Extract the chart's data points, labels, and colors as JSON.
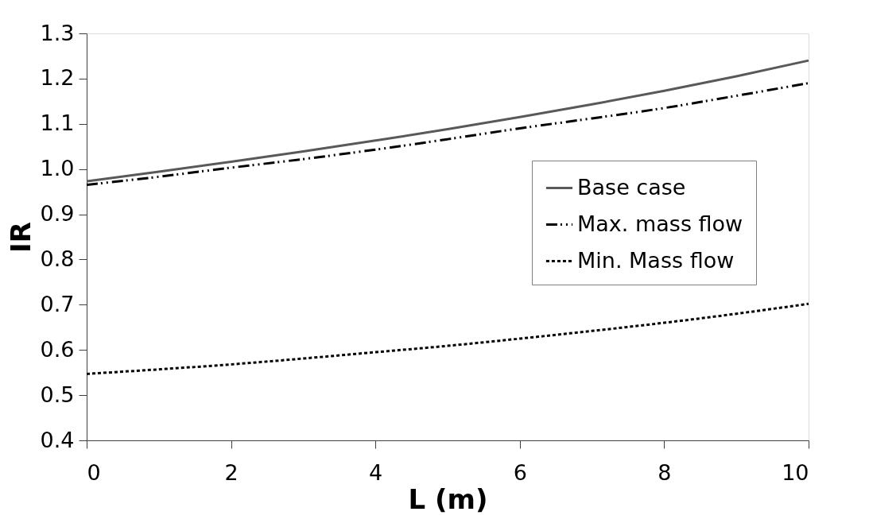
{
  "chart_data": {
    "type": "line",
    "xlabel": "L (m)",
    "ylabel": "IR",
    "x": [
      0,
      1,
      2,
      3,
      4,
      5,
      6,
      7,
      8,
      9,
      10
    ],
    "series": [
      {
        "name": "Base case",
        "color": "#595959",
        "line_style": "solid",
        "values": [
          0.973,
          0.994,
          1.016,
          1.039,
          1.063,
          1.088,
          1.115,
          1.143,
          1.173,
          1.205,
          1.24
        ]
      },
      {
        "name": "Max. mass flow",
        "color": "#000000",
        "line_style": "dashed",
        "values": [
          0.965,
          0.983,
          1.003,
          1.022,
          1.043,
          1.066,
          1.09,
          1.112,
          1.135,
          1.162,
          1.19
        ]
      },
      {
        "name": "Min. Mass flow",
        "color": "#000000",
        "line_style": "dotted",
        "values": [
          0.547,
          0.557,
          0.568,
          0.581,
          0.595,
          0.609,
          0.625,
          0.642,
          0.66,
          0.68,
          0.702
        ]
      }
    ],
    "xlim": [
      0,
      10
    ],
    "xticks": [
      0,
      2,
      4,
      6,
      8,
      10
    ],
    "ylim": [
      0.4,
      1.3
    ],
    "yticks": [
      0.4,
      0.5,
      0.6,
      0.7,
      0.8,
      0.9,
      {
        "value": 1.0,
        "label": "1.0"
      },
      1.1,
      1.2,
      1.3
    ],
    "grid": false,
    "legend": "right",
    "marker": "none"
  }
}
